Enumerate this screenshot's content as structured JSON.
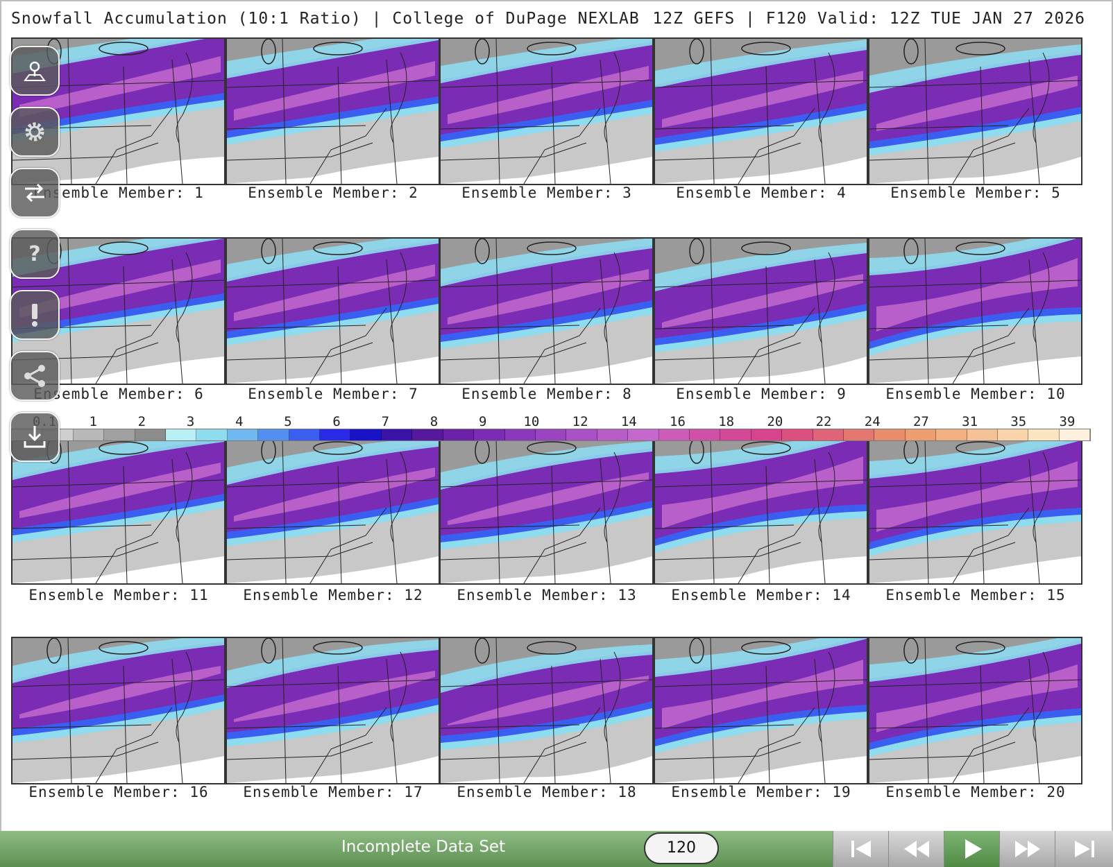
{
  "header": {
    "title": "Snowfall Accumulation (10:1 Ratio) | College of DuPage NEXLAB",
    "run_info": "12Z GEFS | F120 Valid: 12Z TUE JAN 27 2026"
  },
  "panels": [
    {
      "caption": "Ensemble Member: 1"
    },
    {
      "caption": "Ensemble Member: 2"
    },
    {
      "caption": "Ensemble Member: 3"
    },
    {
      "caption": "Ensemble Member: 4"
    },
    {
      "caption": "Ensemble Member: 5"
    },
    {
      "caption": "Ensemble Member: 6"
    },
    {
      "caption": "Ensemble Member: 7"
    },
    {
      "caption": "Ensemble Member: 8"
    },
    {
      "caption": "Ensemble Member: 9"
    },
    {
      "caption": "Ensemble Member: 10"
    },
    {
      "caption": "Ensemble Member: 11"
    },
    {
      "caption": "Ensemble Member: 12"
    },
    {
      "caption": "Ensemble Member: 13"
    },
    {
      "caption": "Ensemble Member: 14"
    },
    {
      "caption": "Ensemble Member: 15"
    },
    {
      "caption": "Ensemble Member: 16"
    },
    {
      "caption": "Ensemble Member: 17"
    },
    {
      "caption": "Ensemble Member: 18"
    },
    {
      "caption": "Ensemble Member: 19"
    },
    {
      "caption": "Ensemble Member: 20"
    }
  ],
  "colorbar": {
    "labels": [
      "0.1",
      "1",
      "2",
      "3",
      "4",
      "5",
      "6",
      "7",
      "8",
      "9",
      "10",
      "12",
      "14",
      "16",
      "18",
      "20",
      "22",
      "24",
      "27",
      "31",
      "35",
      "39"
    ],
    "colors": [
      "#e8e8e8",
      "#cfcfcf",
      "#b8b8b8",
      "#a0a0a0",
      "#8c8c8c",
      "#b9f0f5",
      "#8edcf0",
      "#6fb8f0",
      "#5190f0",
      "#3a5ef0",
      "#2a2ae8",
      "#1a12c8",
      "#3a14a8",
      "#56189c",
      "#6a22a8",
      "#7a2cb4",
      "#8a38bc",
      "#9a44c0",
      "#a850c4",
      "#b85cc8",
      "#c468cc",
      "#cc5cb8",
      "#d050a8",
      "#d44898",
      "#d8448c",
      "#dc5080",
      "#e06478",
      "#e47870",
      "#e88c6c",
      "#ec9e70",
      "#f0b080",
      "#f4c294",
      "#f8d4aa",
      "#fbe4c2",
      "#fdf0dc"
    ]
  },
  "sidebar": {
    "buttons": [
      {
        "name": "map-location-button",
        "icon": "map-pin-icon"
      },
      {
        "name": "settings-button",
        "icon": "gear-icon"
      },
      {
        "name": "swap-button",
        "icon": "swap-arrows-icon"
      },
      {
        "name": "help-button",
        "icon": "question-icon"
      },
      {
        "name": "alert-button",
        "icon": "exclamation-icon"
      },
      {
        "name": "share-button",
        "icon": "share-icon"
      },
      {
        "name": "download-button",
        "icon": "download-icon"
      }
    ]
  },
  "footer": {
    "status": "Incomplete Data Set",
    "frame": "120",
    "controls": [
      "first-frame",
      "step-back",
      "play",
      "step-forward",
      "last-frame"
    ]
  }
}
